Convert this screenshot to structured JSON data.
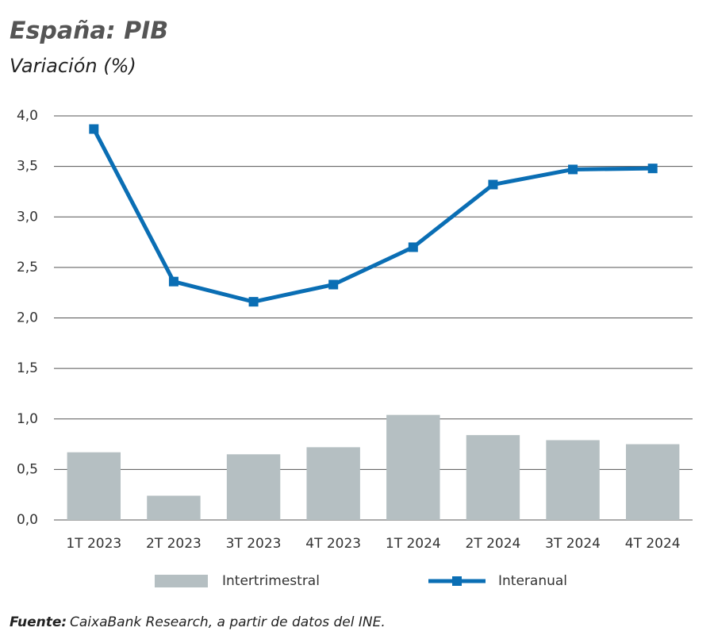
{
  "chart_data": {
    "type": "bar-line",
    "title": "España: PIB",
    "subtitle": "Variación (%)",
    "source_label": "Fuente:",
    "source_text": "CaixaBank Research, a partir de datos del INE.",
    "categories": [
      "1T 2023",
      "2T 2023",
      "3T 2023",
      "4T 2023",
      "1T 2024",
      "2T 2024",
      "3T 2024",
      "4T 2024"
    ],
    "series": [
      {
        "name": "Intertrimestral",
        "type": "bar",
        "color": "#b5bfc2",
        "values": [
          0.67,
          0.24,
          0.65,
          0.72,
          1.04,
          0.84,
          0.79,
          0.75
        ]
      },
      {
        "name": "Interanual",
        "type": "line",
        "color": "#0a6eb4",
        "values": [
          3.87,
          2.36,
          2.16,
          2.33,
          2.7,
          3.32,
          3.47,
          3.48
        ]
      }
    ],
    "ylim": [
      0,
      4
    ],
    "yticks": [
      {
        "value": 0,
        "label": "0,0"
      },
      {
        "value": 0.5,
        "label": "0,5"
      },
      {
        "value": 1,
        "label": "1,0"
      },
      {
        "value": 1.5,
        "label": "1,5"
      },
      {
        "value": 2,
        "label": "2,0"
      },
      {
        "value": 2.5,
        "label": "2,5"
      },
      {
        "value": 3,
        "label": "3,0"
      },
      {
        "value": 3.5,
        "label": "3,5"
      },
      {
        "value": 4,
        "label": "4,0"
      }
    ],
    "grid": true
  }
}
